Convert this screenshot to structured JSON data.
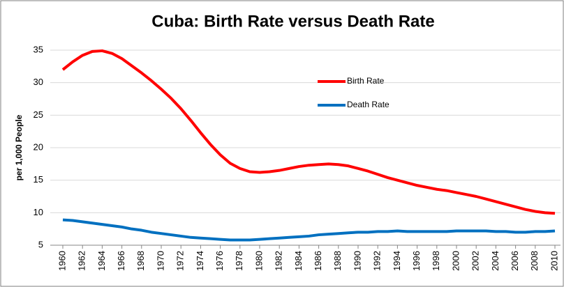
{
  "chart_data": {
    "type": "line",
    "title": "Cuba: Birth Rate versus Death Rate",
    "ylabel": "per 1,000 People",
    "x": [
      1960,
      1961,
      1962,
      1963,
      1964,
      1965,
      1966,
      1967,
      1968,
      1969,
      1970,
      1971,
      1972,
      1973,
      1974,
      1975,
      1976,
      1977,
      1978,
      1979,
      1980,
      1981,
      1982,
      1983,
      1984,
      1985,
      1986,
      1987,
      1988,
      1989,
      1990,
      1991,
      1992,
      1993,
      1994,
      1995,
      1996,
      1997,
      1998,
      1999,
      2000,
      2001,
      2002,
      2003,
      2004,
      2005,
      2006,
      2007,
      2008,
      2009,
      2010
    ],
    "series": [
      {
        "name": "Birth Rate",
        "color": "#ff0000",
        "values": [
          32,
          33.2,
          34.2,
          34.8,
          34.9,
          34.5,
          33.7,
          32.6,
          31.5,
          30.3,
          29.0,
          27.6,
          26.0,
          24.2,
          22.3,
          20.5,
          18.9,
          17.6,
          16.8,
          16.3,
          16.2,
          16.3,
          16.5,
          16.8,
          17.1,
          17.3,
          17.4,
          17.5,
          17.4,
          17.2,
          16.8,
          16.4,
          15.9,
          15.4,
          15.0,
          14.6,
          14.2,
          13.9,
          13.6,
          13.4,
          13.1,
          12.8,
          12.5,
          12.1,
          11.7,
          11.3,
          10.9,
          10.5,
          10.2,
          10.0,
          9.9
        ]
      },
      {
        "name": "Death Rate",
        "color": "#0070c0",
        "values": [
          8.9,
          8.8,
          8.6,
          8.4,
          8.2,
          8.0,
          7.8,
          7.5,
          7.3,
          7.0,
          6.8,
          6.6,
          6.4,
          6.2,
          6.1,
          6.0,
          5.9,
          5.8,
          5.8,
          5.8,
          5.9,
          6.0,
          6.1,
          6.2,
          6.3,
          6.4,
          6.6,
          6.7,
          6.8,
          6.9,
          7.0,
          7.0,
          7.1,
          7.1,
          7.2,
          7.1,
          7.1,
          7.1,
          7.1,
          7.1,
          7.2,
          7.2,
          7.2,
          7.2,
          7.1,
          7.1,
          7.0,
          7.0,
          7.1,
          7.1,
          7.2
        ]
      }
    ],
    "xlim": [
      1960,
      2010
    ],
    "xticks": [
      1960,
      1962,
      1964,
      1966,
      1968,
      1970,
      1972,
      1974,
      1976,
      1978,
      1980,
      1982,
      1984,
      1986,
      1988,
      1990,
      1992,
      1994,
      1996,
      1998,
      2000,
      2002,
      2004,
      2006,
      2008,
      2010
    ],
    "ylim": [
      5,
      35
    ],
    "yticks": [
      5,
      10,
      15,
      20,
      25,
      30,
      35
    ],
    "grid": true
  }
}
